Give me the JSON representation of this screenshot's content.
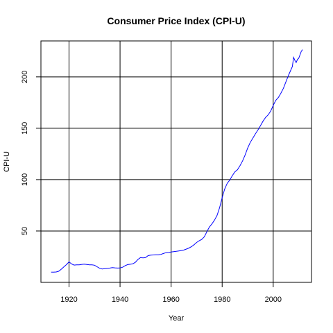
{
  "chart_data": {
    "type": "line",
    "title": "Consumer Price Index (CPI-U)",
    "xlabel": "Year",
    "ylabel": "CPI-U",
    "xlim": [
      1909,
      2015
    ],
    "ylim": [
      0,
      235
    ],
    "x_ticks": [
      1920,
      1940,
      1960,
      1980,
      2000
    ],
    "y_ticks": [
      50,
      100,
      150,
      200
    ],
    "grid": true,
    "series_color": "#0000ff",
    "series": [
      {
        "x": [
          1913,
          1914,
          1915,
          1916,
          1917,
          1918,
          1919,
          1920,
          1921,
          1922,
          1923,
          1924,
          1925,
          1926,
          1927,
          1928,
          1929,
          1930,
          1931,
          1932,
          1933,
          1934,
          1935,
          1936,
          1937,
          1938,
          1939,
          1940,
          1941,
          1942,
          1943,
          1944,
          1945,
          1946,
          1947,
          1948,
          1949,
          1950,
          1951,
          1952,
          1953,
          1954,
          1955,
          1956,
          1957,
          1958,
          1959,
          1960,
          1961,
          1962,
          1963,
          1964,
          1965,
          1966,
          1967,
          1968,
          1969,
          1970,
          1971,
          1972,
          1973,
          1974,
          1975,
          1976,
          1977,
          1978,
          1979,
          1980,
          1981,
          1982,
          1983,
          1984,
          1985,
          1986,
          1987,
          1988,
          1989,
          1990,
          1991,
          1992,
          1993,
          1994,
          1995,
          1996,
          1997,
          1998,
          1999,
          2000,
          2001,
          2002,
          2003,
          2004,
          2005,
          2006,
          2007,
          2007.5,
          2008,
          2008.5,
          2009,
          2009.5,
          2010,
          2011,
          2011.5
        ],
        "y": [
          9.9,
          10.0,
          10.1,
          10.9,
          12.8,
          15.1,
          17.3,
          20.0,
          17.9,
          16.8,
          17.1,
          17.1,
          17.5,
          17.7,
          17.4,
          17.1,
          17.1,
          16.7,
          15.2,
          13.7,
          13.0,
          13.4,
          13.7,
          13.9,
          14.4,
          14.1,
          13.9,
          14.0,
          14.7,
          16.3,
          17.3,
          17.6,
          18.0,
          19.5,
          22.3,
          24.1,
          23.8,
          24.1,
          26.0,
          26.5,
          26.7,
          26.9,
          26.8,
          27.2,
          28.1,
          28.9,
          29.1,
          29.6,
          29.9,
          30.2,
          30.6,
          31.0,
          31.5,
          32.4,
          33.4,
          34.8,
          36.7,
          38.8,
          40.5,
          41.8,
          44.4,
          49.3,
          53.8,
          56.9,
          60.6,
          65.2,
          72.6,
          82.4,
          90.9,
          96.5,
          99.6,
          103.9,
          107.6,
          109.6,
          113.6,
          118.3,
          124.0,
          130.7,
          136.2,
          140.3,
          144.5,
          148.2,
          152.4,
          156.9,
          160.5,
          163.0,
          166.6,
          172.2,
          177.1,
          179.9,
          184.0,
          188.9,
          195.3,
          201.6,
          207.3,
          210.0,
          219.0,
          216.0,
          214.0,
          217.0,
          218.1,
          224.9,
          226.5
        ]
      }
    ]
  }
}
